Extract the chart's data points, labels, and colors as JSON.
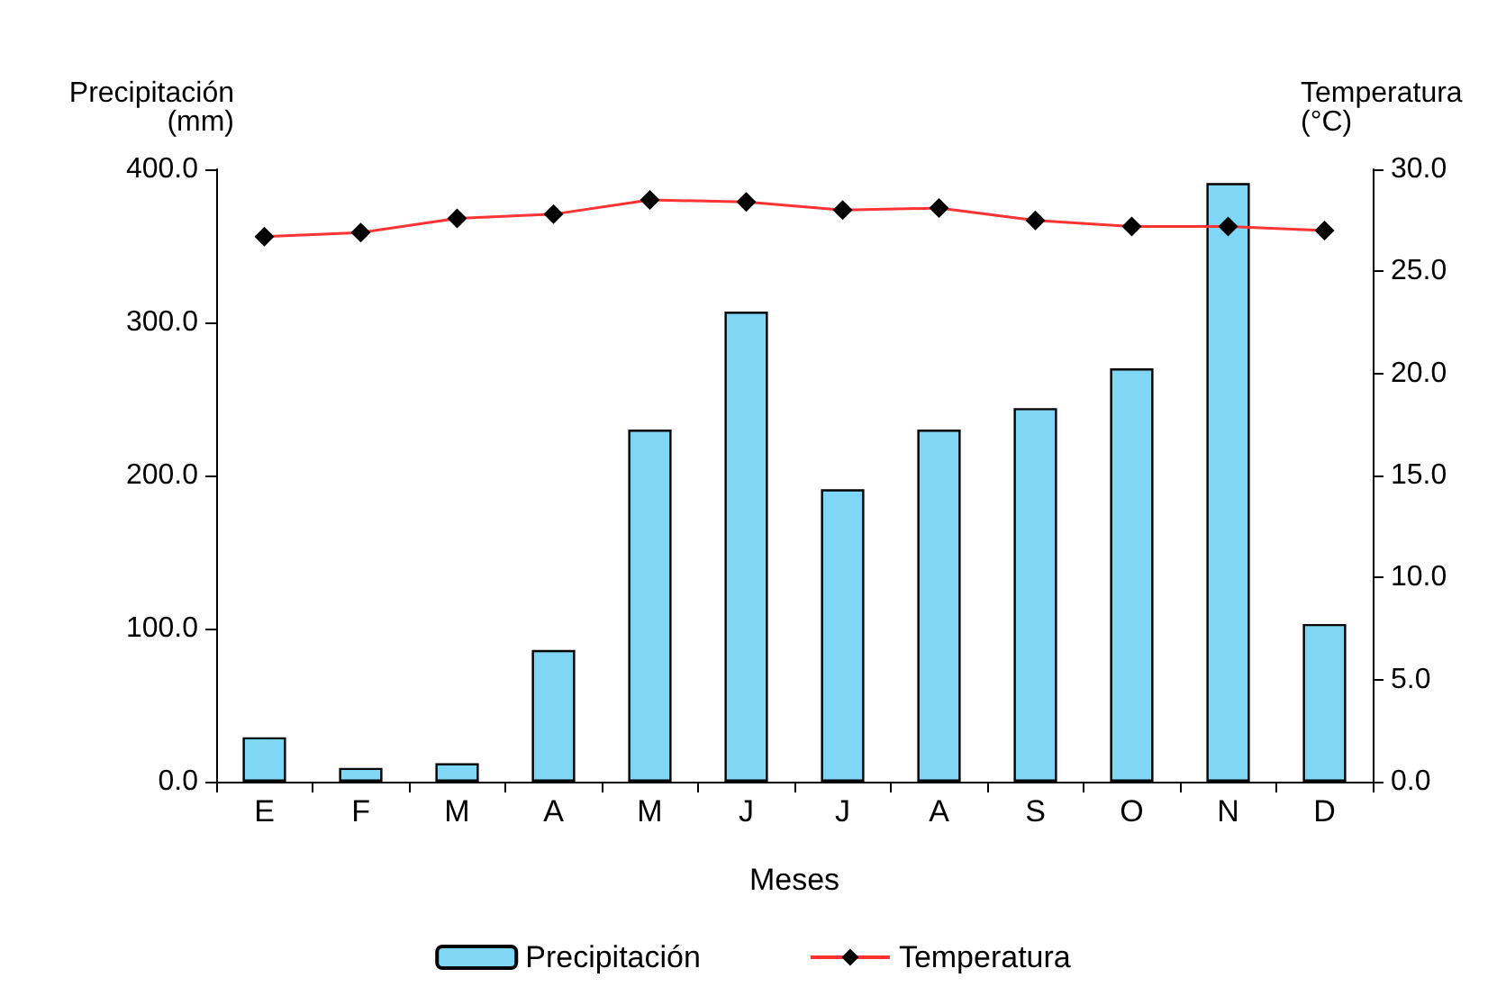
{
  "chart_data": {
    "type": "bar",
    "xlabel": "Meses",
    "ylabel": "Precipitación\n(mm)",
    "y2label": "Temperatura\n(°C)",
    "categories": [
      "E",
      "F",
      "M",
      "A",
      "M",
      "J",
      "J",
      "A",
      "S",
      "O",
      "N",
      "D"
    ],
    "series": [
      {
        "name": "Precipitación",
        "color": "#7fd6f5",
        "values": [
          29,
          9,
          12,
          86,
          230,
          307,
          191,
          230,
          244,
          270,
          391,
          103
        ]
      },
      {
        "name": "Temperatura",
        "type": "line",
        "axis": "y2",
        "color": "#ff3333",
        "marker": "diamond",
        "values": [
          26.7,
          26.9,
          27.6,
          27.8,
          28.5,
          28.4,
          28.0,
          28.1,
          27.5,
          27.2,
          27.2,
          27.0
        ]
      }
    ],
    "ylim": [
      0,
      400
    ],
    "yticks": [
      {
        "value": 0,
        "label": "0.0"
      },
      {
        "value": 100,
        "label": "100.0"
      },
      {
        "value": 200,
        "label": "200.0"
      },
      {
        "value": 300,
        "label": "300.0"
      },
      {
        "value": 400,
        "label": "400.0"
      }
    ],
    "y2lim": [
      0,
      30
    ],
    "y2ticks": [
      {
        "value": 0,
        "label": "0.0"
      },
      {
        "value": 5,
        "label": "5.0"
      },
      {
        "value": 10,
        "label": "10.0"
      },
      {
        "value": 15,
        "label": "15.0"
      },
      {
        "value": 20,
        "label": "20.0"
      },
      {
        "value": 25,
        "label": "25.0"
      },
      {
        "value": 30,
        "label": "30.0"
      }
    ],
    "grid": false,
    "legend": "bottom"
  }
}
